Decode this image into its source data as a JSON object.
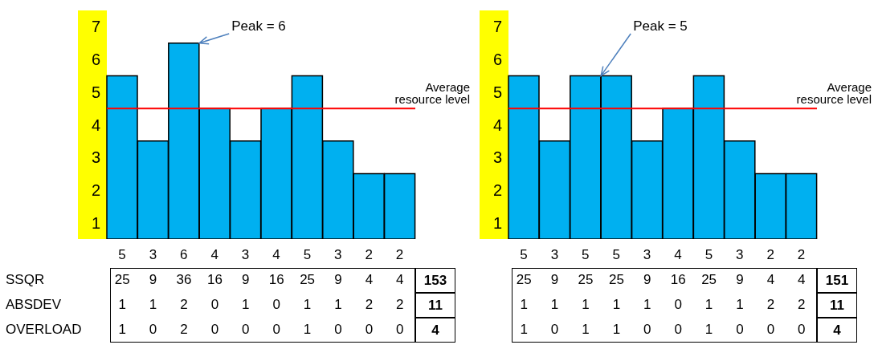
{
  "chart_data": [
    {
      "type": "bar",
      "categories": [
        null,
        null,
        null,
        null,
        null,
        null,
        null,
        null,
        null,
        null
      ],
      "values": [
        5,
        3,
        6,
        4,
        3,
        4,
        5,
        3,
        2,
        2
      ],
      "color": "#00b0f0",
      "ylim": [
        0,
        7
      ],
      "yticks": [
        {
          "value": 0.5,
          "label": "1"
        },
        {
          "value": 1.5,
          "label": "2"
        },
        {
          "value": 2.5,
          "label": "3"
        },
        {
          "value": 3.5,
          "label": "4"
        },
        {
          "value": 4.5,
          "label": "5"
        },
        {
          "value": 5.5,
          "label": "6"
        },
        {
          "value": 6.5,
          "label": "7"
        }
      ],
      "tick_labels": "y",
      "grid": false,
      "data_labels": true,
      "ref_lines": [
        {
          "axis": "y",
          "value": 4,
          "label": "Average resource level",
          "color": "#ff0000"
        }
      ],
      "annotations": [
        "Peak = 6",
        "SSQR 25 9 36 16 9 16 25 9 4 4 153",
        "ABSDEV 1 1 2 0 1 0 1 1 2 2 11",
        "OVERLOAD 1 0 2 0 0 0 1 0 0 0 4"
      ]
    },
    {
      "type": "bar",
      "categories": [
        null,
        null,
        null,
        null,
        null,
        null,
        null,
        null,
        null,
        null
      ],
      "values": [
        5,
        3,
        5,
        5,
        3,
        4,
        5,
        3,
        2,
        2
      ],
      "color": "#00b0f0",
      "ylim": [
        0,
        7
      ],
      "yticks": [
        {
          "value": 0.5,
          "label": "1"
        },
        {
          "value": 1.5,
          "label": "2"
        },
        {
          "value": 2.5,
          "label": "3"
        },
        {
          "value": 3.5,
          "label": "4"
        },
        {
          "value": 4.5,
          "label": "5"
        },
        {
          "value": 5.5,
          "label": "6"
        },
        {
          "value": 6.5,
          "label": "7"
        }
      ],
      "tick_labels": "y",
      "grid": false,
      "data_labels": true,
      "ref_lines": [
        {
          "axis": "y",
          "value": 4,
          "label": "Average resource level",
          "color": "#ff0000"
        }
      ],
      "annotations": [
        "Peak = 5",
        "25 9 25 25 9 16 25 9 4 4 151",
        "1 1 1 1 1 0 1 1 2 2 11",
        "1 0 1 1 0 0 1 0 0 0 4"
      ]
    }
  ]
}
